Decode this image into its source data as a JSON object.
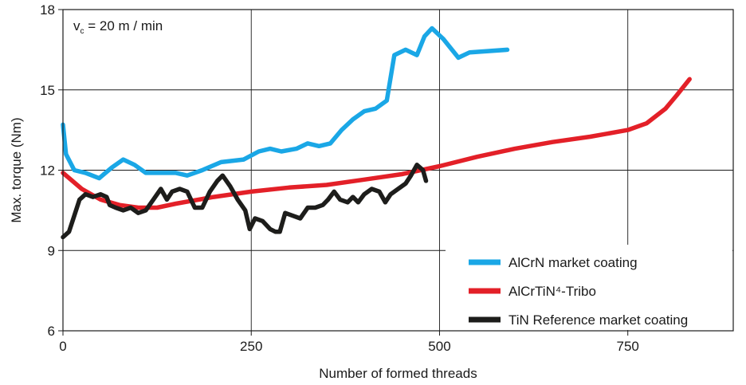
{
  "chart_data": {
    "type": "line",
    "xlabel": "Number of formed threads",
    "ylabel": "Max. torque (Nm)",
    "xlim": [
      0,
      890
    ],
    "ylim": [
      6,
      18
    ],
    "x_ticks": [
      0,
      250,
      500,
      750
    ],
    "y_ticks": [
      6,
      9,
      12,
      15,
      18
    ],
    "grid": true,
    "legend_position": "bottom-right",
    "annotation": {
      "v": "v",
      "sub": "c",
      "rest": " = 20 m / min"
    },
    "series": [
      {
        "name": "AlCrN market coating",
        "color": "#1aa7e6",
        "points": [
          [
            0,
            13.7
          ],
          [
            4,
            12.6
          ],
          [
            15,
            12.0
          ],
          [
            30,
            11.9
          ],
          [
            48,
            11.7
          ],
          [
            65,
            12.1
          ],
          [
            80,
            12.4
          ],
          [
            95,
            12.2
          ],
          [
            110,
            11.9
          ],
          [
            130,
            11.9
          ],
          [
            150,
            11.9
          ],
          [
            165,
            11.8
          ],
          [
            185,
            12.0
          ],
          [
            210,
            12.3
          ],
          [
            240,
            12.4
          ],
          [
            260,
            12.7
          ],
          [
            275,
            12.8
          ],
          [
            290,
            12.7
          ],
          [
            310,
            12.8
          ],
          [
            325,
            13.0
          ],
          [
            340,
            12.9
          ],
          [
            355,
            13.0
          ],
          [
            370,
            13.5
          ],
          [
            385,
            13.9
          ],
          [
            400,
            14.2
          ],
          [
            415,
            14.3
          ],
          [
            430,
            14.6
          ],
          [
            440,
            16.3
          ],
          [
            455,
            16.5
          ],
          [
            470,
            16.3
          ],
          [
            480,
            17.0
          ],
          [
            490,
            17.3
          ],
          [
            505,
            16.9
          ],
          [
            525,
            16.2
          ],
          [
            540,
            16.4
          ],
          [
            590,
            16.5
          ]
        ]
      },
      {
        "name": "AlCrTiN⁴-Tribo",
        "color": "#e32028",
        "points": [
          [
            0,
            11.9
          ],
          [
            25,
            11.3
          ],
          [
            50,
            10.9
          ],
          [
            75,
            10.7
          ],
          [
            100,
            10.6
          ],
          [
            125,
            10.6
          ],
          [
            150,
            10.75
          ],
          [
            200,
            11.0
          ],
          [
            250,
            11.2
          ],
          [
            300,
            11.35
          ],
          [
            350,
            11.45
          ],
          [
            400,
            11.65
          ],
          [
            450,
            11.85
          ],
          [
            500,
            12.15
          ],
          [
            550,
            12.5
          ],
          [
            600,
            12.8
          ],
          [
            650,
            13.05
          ],
          [
            700,
            13.25
          ],
          [
            750,
            13.5
          ],
          [
            775,
            13.75
          ],
          [
            800,
            14.3
          ],
          [
            815,
            14.8
          ],
          [
            832,
            15.4
          ]
        ]
      },
      {
        "name": "TiN Reference market coating",
        "color": "#1d1d1b",
        "points": [
          [
            0,
            9.5
          ],
          [
            8,
            9.7
          ],
          [
            15,
            10.3
          ],
          [
            22,
            10.9
          ],
          [
            30,
            11.1
          ],
          [
            40,
            11.0
          ],
          [
            50,
            11.1
          ],
          [
            58,
            11.0
          ],
          [
            62,
            10.7
          ],
          [
            70,
            10.6
          ],
          [
            80,
            10.5
          ],
          [
            90,
            10.6
          ],
          [
            100,
            10.4
          ],
          [
            110,
            10.5
          ],
          [
            120,
            10.9
          ],
          [
            130,
            11.3
          ],
          [
            138,
            10.9
          ],
          [
            145,
            11.2
          ],
          [
            155,
            11.3
          ],
          [
            165,
            11.2
          ],
          [
            175,
            10.6
          ],
          [
            185,
            10.6
          ],
          [
            195,
            11.2
          ],
          [
            205,
            11.6
          ],
          [
            212,
            11.8
          ],
          [
            222,
            11.4
          ],
          [
            232,
            10.9
          ],
          [
            242,
            10.5
          ],
          [
            248,
            9.8
          ],
          [
            255,
            10.2
          ],
          [
            265,
            10.1
          ],
          [
            275,
            9.8
          ],
          [
            282,
            9.7
          ],
          [
            288,
            9.7
          ],
          [
            295,
            10.4
          ],
          [
            305,
            10.3
          ],
          [
            315,
            10.2
          ],
          [
            325,
            10.6
          ],
          [
            335,
            10.6
          ],
          [
            345,
            10.7
          ],
          [
            352,
            10.9
          ],
          [
            360,
            11.2
          ],
          [
            368,
            10.9
          ],
          [
            378,
            10.8
          ],
          [
            385,
            11.0
          ],
          [
            392,
            10.8
          ],
          [
            400,
            11.1
          ],
          [
            410,
            11.3
          ],
          [
            420,
            11.2
          ],
          [
            428,
            10.8
          ],
          [
            435,
            11.1
          ],
          [
            445,
            11.3
          ],
          [
            455,
            11.5
          ],
          [
            462,
            11.8
          ],
          [
            470,
            12.2
          ],
          [
            478,
            12.0
          ],
          [
            482,
            11.6
          ]
        ]
      }
    ]
  }
}
